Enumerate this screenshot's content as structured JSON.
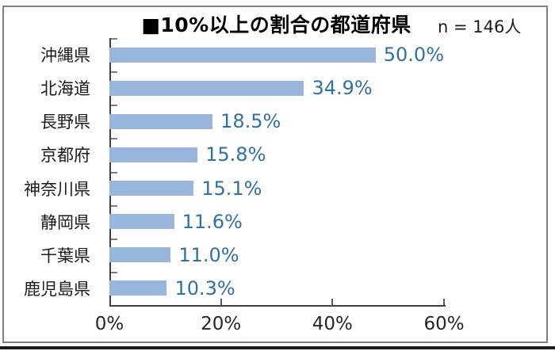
{
  "header": {
    "title": "■10%以上の割合の都道府県",
    "sample_label": "n = 146人"
  },
  "chart_data": {
    "type": "bar",
    "orientation": "horizontal",
    "title": "■10%以上の割合の都道府県",
    "sample_size_note": "n = 146人",
    "categories": [
      "沖縄県",
      "北海道",
      "長野県",
      "京都府",
      "神奈川県",
      "静岡県",
      "千葉県",
      "鹿児島県"
    ],
    "values": [
      50.0,
      34.9,
      18.5,
      15.8,
      15.1,
      11.6,
      11.0,
      10.3
    ],
    "data_labels": [
      "50.0%",
      "34.9%",
      "18.5%",
      "15.8%",
      "15.1%",
      "11.6%",
      "11.0%",
      "10.3%"
    ],
    "xlabel": "",
    "ylabel": "",
    "xlim": [
      0,
      60
    ],
    "x_tick_values": [
      0,
      20,
      40,
      60
    ],
    "x_tick_labels": [
      "0%",
      "20%",
      "40%",
      "60%"
    ],
    "grid": false,
    "legend": "none"
  },
  "colors": {
    "bar_fill": "#98b6dc",
    "data_label": "#2f70a8",
    "axis_line": "#404040",
    "tick": "#808080",
    "outer_border": "#808080",
    "text": "#1a1a1a",
    "title_text": "#000000",
    "bottom_rule": "#1c1c1c",
    "background": "#ffffff"
  }
}
